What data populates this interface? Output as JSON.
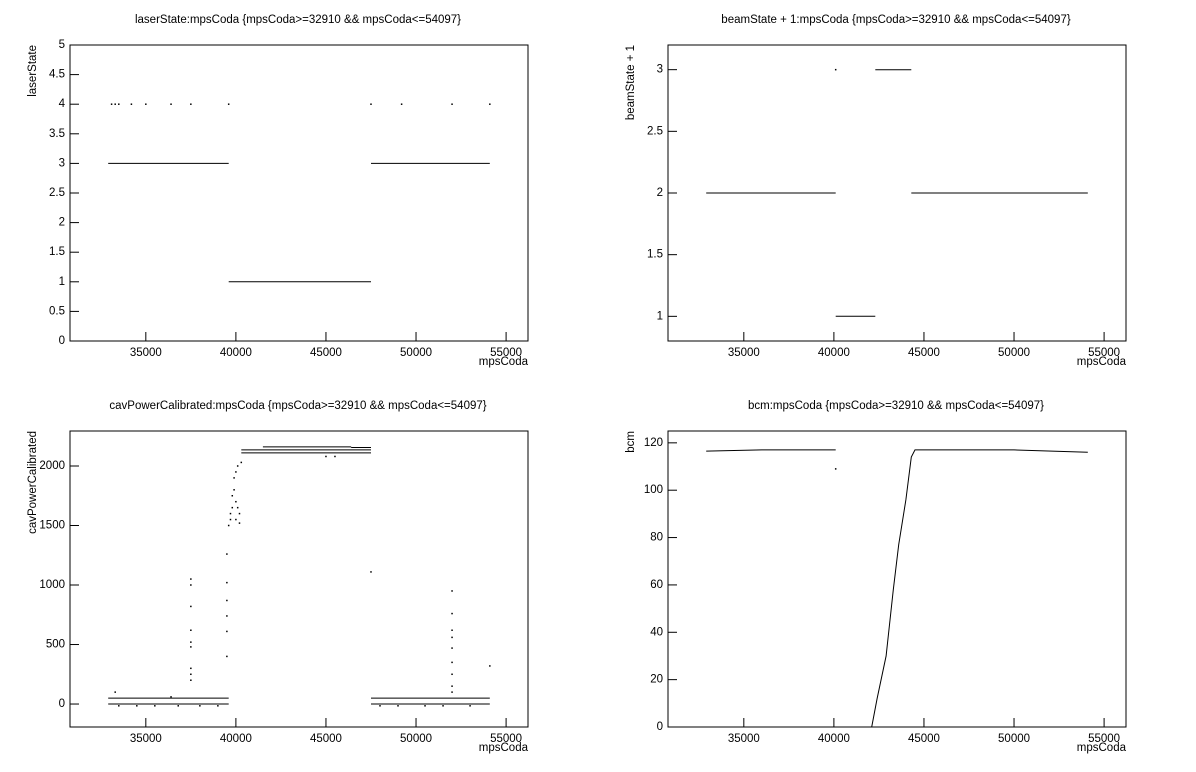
{
  "chart_data": [
    {
      "type": "scatter",
      "title": "laserState:mpsCoda {mpsCoda>=32910 && mpsCoda<=54097}",
      "xlabel": "mpsCoda",
      "ylabel": "laserState",
      "xlim": [
        30791,
        56216
      ],
      "ylim": [
        0,
        5
      ],
      "xticks": [
        35000,
        40000,
        45000,
        50000,
        55000
      ],
      "yticks": [
        0,
        0.5,
        1,
        1.5,
        2,
        2.5,
        3,
        3.5,
        4,
        4.5,
        5
      ],
      "series": [
        {
          "mode": "line",
          "color": "#000000",
          "x": [
            32910,
            39600,
            null,
            39600,
            47500,
            null,
            47500,
            54097
          ],
          "values": [
            3,
            3,
            null,
            1,
            1,
            null,
            3,
            3
          ]
        },
        {
          "mode": "markers",
          "color": "#000000",
          "x": [
            33100,
            33300,
            33500,
            34200,
            35000,
            36400,
            37500,
            39600,
            47500,
            49200,
            52000,
            54097
          ],
          "values": [
            4,
            4,
            4,
            4,
            4,
            4,
            4,
            4,
            4,
            4,
            4,
            4
          ]
        }
      ]
    },
    {
      "type": "scatter",
      "title": "beamState + 1:mpsCoda {mpsCoda>=32910 && mpsCoda<=54097}",
      "xlabel": "mpsCoda",
      "ylabel": "beamState + 1",
      "xlim": [
        30791,
        56216
      ],
      "ylim": [
        0.8,
        3.2
      ],
      "xticks": [
        35000,
        40000,
        45000,
        50000,
        55000
      ],
      "yticks": [
        1,
        1.5,
        2,
        2.5,
        3
      ],
      "series": [
        {
          "mode": "line",
          "color": "#000000",
          "x": [
            32910,
            40100,
            null,
            40100,
            42300,
            null,
            42300,
            44300,
            null,
            44300,
            54097
          ],
          "values": [
            2,
            2,
            null,
            1,
            1,
            null,
            3,
            3,
            null,
            2,
            2
          ]
        },
        {
          "mode": "markers",
          "color": "#000000",
          "x": [
            40100
          ],
          "values": [
            3
          ]
        }
      ]
    },
    {
      "type": "scatter",
      "title": "cavPowerCalibrated:mpsCoda {mpsCoda>=32910 && mpsCoda<=54097}",
      "xlabel": "mpsCoda",
      "ylabel": "cavPowerCalibrated",
      "xlim": [
        30791,
        56216
      ],
      "ylim": [
        -193,
        2294
      ],
      "xticks": [
        35000,
        40000,
        45000,
        50000,
        55000
      ],
      "yticks": [
        0,
        500,
        1000,
        1500,
        2000
      ],
      "series": [
        {
          "mode": "line",
          "color": "#000000",
          "x": [
            32910,
            39600,
            null,
            32910,
            39600,
            null,
            40300,
            47500,
            null,
            40300,
            47500,
            null,
            41500,
            46400,
            null,
            46400,
            47500,
            null,
            47500,
            54097,
            null,
            47500,
            54097
          ],
          "values": [
            50,
            50,
            null,
            0,
            0,
            null,
            2110,
            2110,
            null,
            2135,
            2135,
            null,
            2160,
            2160,
            null,
            2155,
            2155,
            null,
            50,
            50,
            null,
            0,
            0
          ]
        },
        {
          "mode": "markers",
          "color": "#000000",
          "x": [
            37500,
            37500,
            37500,
            37500,
            37500,
            37500,
            37500,
            37500,
            37500,
            39500,
            39500,
            39500,
            39500,
            39500,
            39500,
            39600,
            39700,
            39700,
            39800,
            39800,
            39900,
            39900,
            40000,
            40000,
            40000,
            40100,
            40100,
            40200,
            40200,
            40300,
            47500,
            52000,
            52000,
            52000,
            52000,
            52000,
            52000,
            52000,
            52000,
            52000,
            54097,
            33300,
            36400,
            33500,
            34500,
            35500,
            36800,
            38000,
            39000,
            48000,
            49000,
            50500,
            51500,
            53000,
            45000,
            45500
          ],
          "values": [
            1050,
            1000,
            820,
            620,
            520,
            480,
            300,
            250,
            200,
            1260,
            1020,
            870,
            740,
            610,
            400,
            1500,
            1550,
            1600,
            1650,
            1750,
            1800,
            1900,
            1950,
            1700,
            1550,
            2000,
            1650,
            1600,
            1520,
            2030,
            1110,
            950,
            760,
            620,
            560,
            470,
            350,
            250,
            150,
            100,
            320,
            100,
            60,
            -15,
            -15,
            -15,
            -15,
            -15,
            -15,
            -15,
            -15,
            -15,
            -15,
            -15,
            2080,
            2080
          ]
        }
      ]
    },
    {
      "type": "scatter",
      "title": "bcm:mpsCoda {mpsCoda>=32910 && mpsCoda<=54097}",
      "xlabel": "mpsCoda",
      "ylabel": "bcm",
      "xlim": [
        30791,
        56216
      ],
      "ylim": [
        0,
        125
      ],
      "xticks": [
        35000,
        40000,
        45000,
        50000,
        55000
      ],
      "yticks": [
        0,
        20,
        40,
        60,
        80,
        100,
        120
      ],
      "series": [
        {
          "mode": "line",
          "color": "#000000",
          "x": [
            32910,
            36000,
            40100,
            null,
            42100,
            42400,
            42400,
            42900,
            42900,
            43300,
            43300,
            43600,
            43600,
            44000,
            44000,
            44300,
            44300,
            44500,
            50000,
            54097
          ],
          "values": [
            116.5,
            117,
            117,
            null,
            0,
            12,
            12,
            30,
            30,
            58,
            58,
            77,
            77,
            96,
            96,
            114,
            114,
            117,
            117,
            116
          ]
        },
        {
          "mode": "markers",
          "color": "#000000",
          "x": [
            40100
          ],
          "values": [
            109
          ]
        }
      ]
    }
  ]
}
